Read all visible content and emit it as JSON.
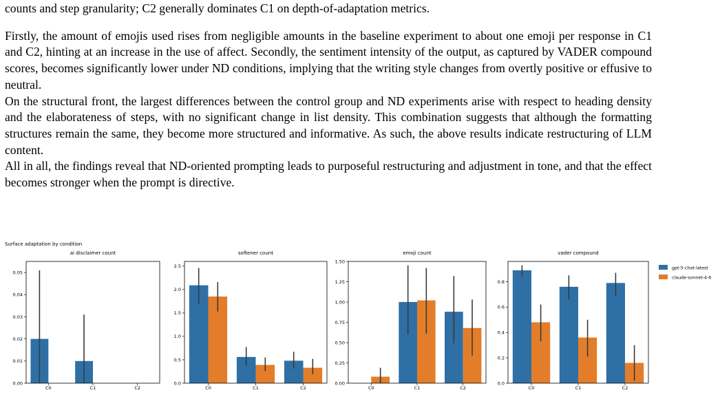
{
  "text": {
    "para0_tail": "counts and step granularity; C2 generally dominates C1 on depth-of-adaptation metrics.",
    "para1": "Firstly, the amount of emojis used rises from negligible amounts in the baseline experiment to about one emoji per response in C1 and C2, hinting at an increase in the use of affect. Secondly, the sentiment intensity of the output, as captured by VADER compound scores, becomes significantly lower under ND conditions, implying that the writing style changes from overtly positive or effusive to neutral.",
    "para2": "On the structural front, the largest differences between the control group and ND experiments arise with respect to heading density and the elaborateness of steps, with no significant change in list density. This combination suggests that although the formatting structures remain the same, they become more structured and informative. As such, the above results indicate restructuring of LLM content.",
    "para3": "All in all, the findings reveal that ND-oriented prompting leads to purposeful restructuring and adjustment in tone, and that the effect becomes stronger when the prompt is directive."
  },
  "figure": {
    "suptitle": "Surface adaptation by condition",
    "colors": {
      "gpt": "#2e70a6",
      "claude": "#e37d2a",
      "err": "#3a3a3a"
    }
  },
  "chart_data": [
    {
      "type": "bar",
      "title": "ai disclaimer count",
      "categories": [
        "C0",
        "C1",
        "C2"
      ],
      "ylim": [
        0,
        0.055
      ],
      "yticks": [
        "0.00",
        "0.01",
        "0.02",
        "0.03",
        "0.04",
        "0.05"
      ],
      "series": [
        {
          "name": "gpt-5-chat-latest",
          "values": [
            0.02,
            0.01,
            0.0
          ],
          "err": [
            [
              0.0,
              0.051
            ],
            [
              0.0,
              0.031
            ],
            [
              0.0,
              0.0
            ]
          ]
        },
        {
          "name": "claude-sonnet-4-6",
          "values": [
            0.0,
            0.0,
            0.0
          ],
          "err": [
            [
              0.0,
              0.0
            ],
            [
              0.0,
              0.0
            ],
            [
              0.0,
              0.0
            ]
          ]
        }
      ]
    },
    {
      "type": "bar",
      "title": "softener count",
      "categories": [
        "C0",
        "C1",
        "C2"
      ],
      "ylim": [
        0,
        2.6
      ],
      "yticks": [
        "0.0",
        "0.5",
        "1.0",
        "1.5",
        "2.0",
        "2.5"
      ],
      "series": [
        {
          "name": "gpt-5-chat-latest",
          "values": [
            2.09,
            0.56,
            0.48
          ],
          "err": [
            [
              1.68,
              2.46
            ],
            [
              0.37,
              0.77
            ],
            [
              0.31,
              0.67
            ]
          ]
        },
        {
          "name": "claude-sonnet-4-6",
          "values": [
            1.85,
            0.39,
            0.33
          ],
          "err": [
            [
              1.53,
              2.16
            ],
            [
              0.26,
              0.55
            ],
            [
              0.19,
              0.52
            ]
          ]
        }
      ]
    },
    {
      "type": "bar",
      "title": "emoji count",
      "categories": [
        "C0",
        "C1",
        "C2"
      ],
      "ylim": [
        0,
        1.5
      ],
      "yticks": [
        "0.00",
        "0.25",
        "0.50",
        "0.75",
        "1.00",
        "1.25",
        "1.50"
      ],
      "series": [
        {
          "name": "gpt-5-chat-latest",
          "values": [
            0.0,
            1.0,
            0.88
          ],
          "err": [
            [
              0.0,
              0.0
            ],
            [
              0.6,
              1.45
            ],
            [
              0.49,
              1.32
            ]
          ]
        },
        {
          "name": "claude-sonnet-4-6",
          "values": [
            0.08,
            1.02,
            0.68
          ],
          "err": [
            [
              0.0,
              0.19
            ],
            [
              0.61,
              1.42
            ],
            [
              0.34,
              1.03
            ]
          ]
        }
      ]
    },
    {
      "type": "bar",
      "title": "vader compound",
      "categories": [
        "C0",
        "C1",
        "C2"
      ],
      "ylim": [
        0,
        0.96
      ],
      "yticks": [
        "0.0",
        "0.2",
        "0.4",
        "0.6",
        "0.8"
      ],
      "series": [
        {
          "name": "gpt-5-chat-latest",
          "values": [
            0.89,
            0.76,
            0.79
          ],
          "err": [
            [
              0.84,
              0.93
            ],
            [
              0.66,
              0.85
            ],
            [
              0.69,
              0.87
            ]
          ]
        },
        {
          "name": "claude-sonnet-4-6",
          "values": [
            0.48,
            0.36,
            0.16
          ],
          "err": [
            [
              0.33,
              0.62
            ],
            [
              0.21,
              0.5
            ],
            [
              0.02,
              0.3
            ]
          ]
        }
      ]
    }
  ],
  "legend": [
    "gpt-5-chat-latest",
    "claude-sonnet-4-6"
  ]
}
